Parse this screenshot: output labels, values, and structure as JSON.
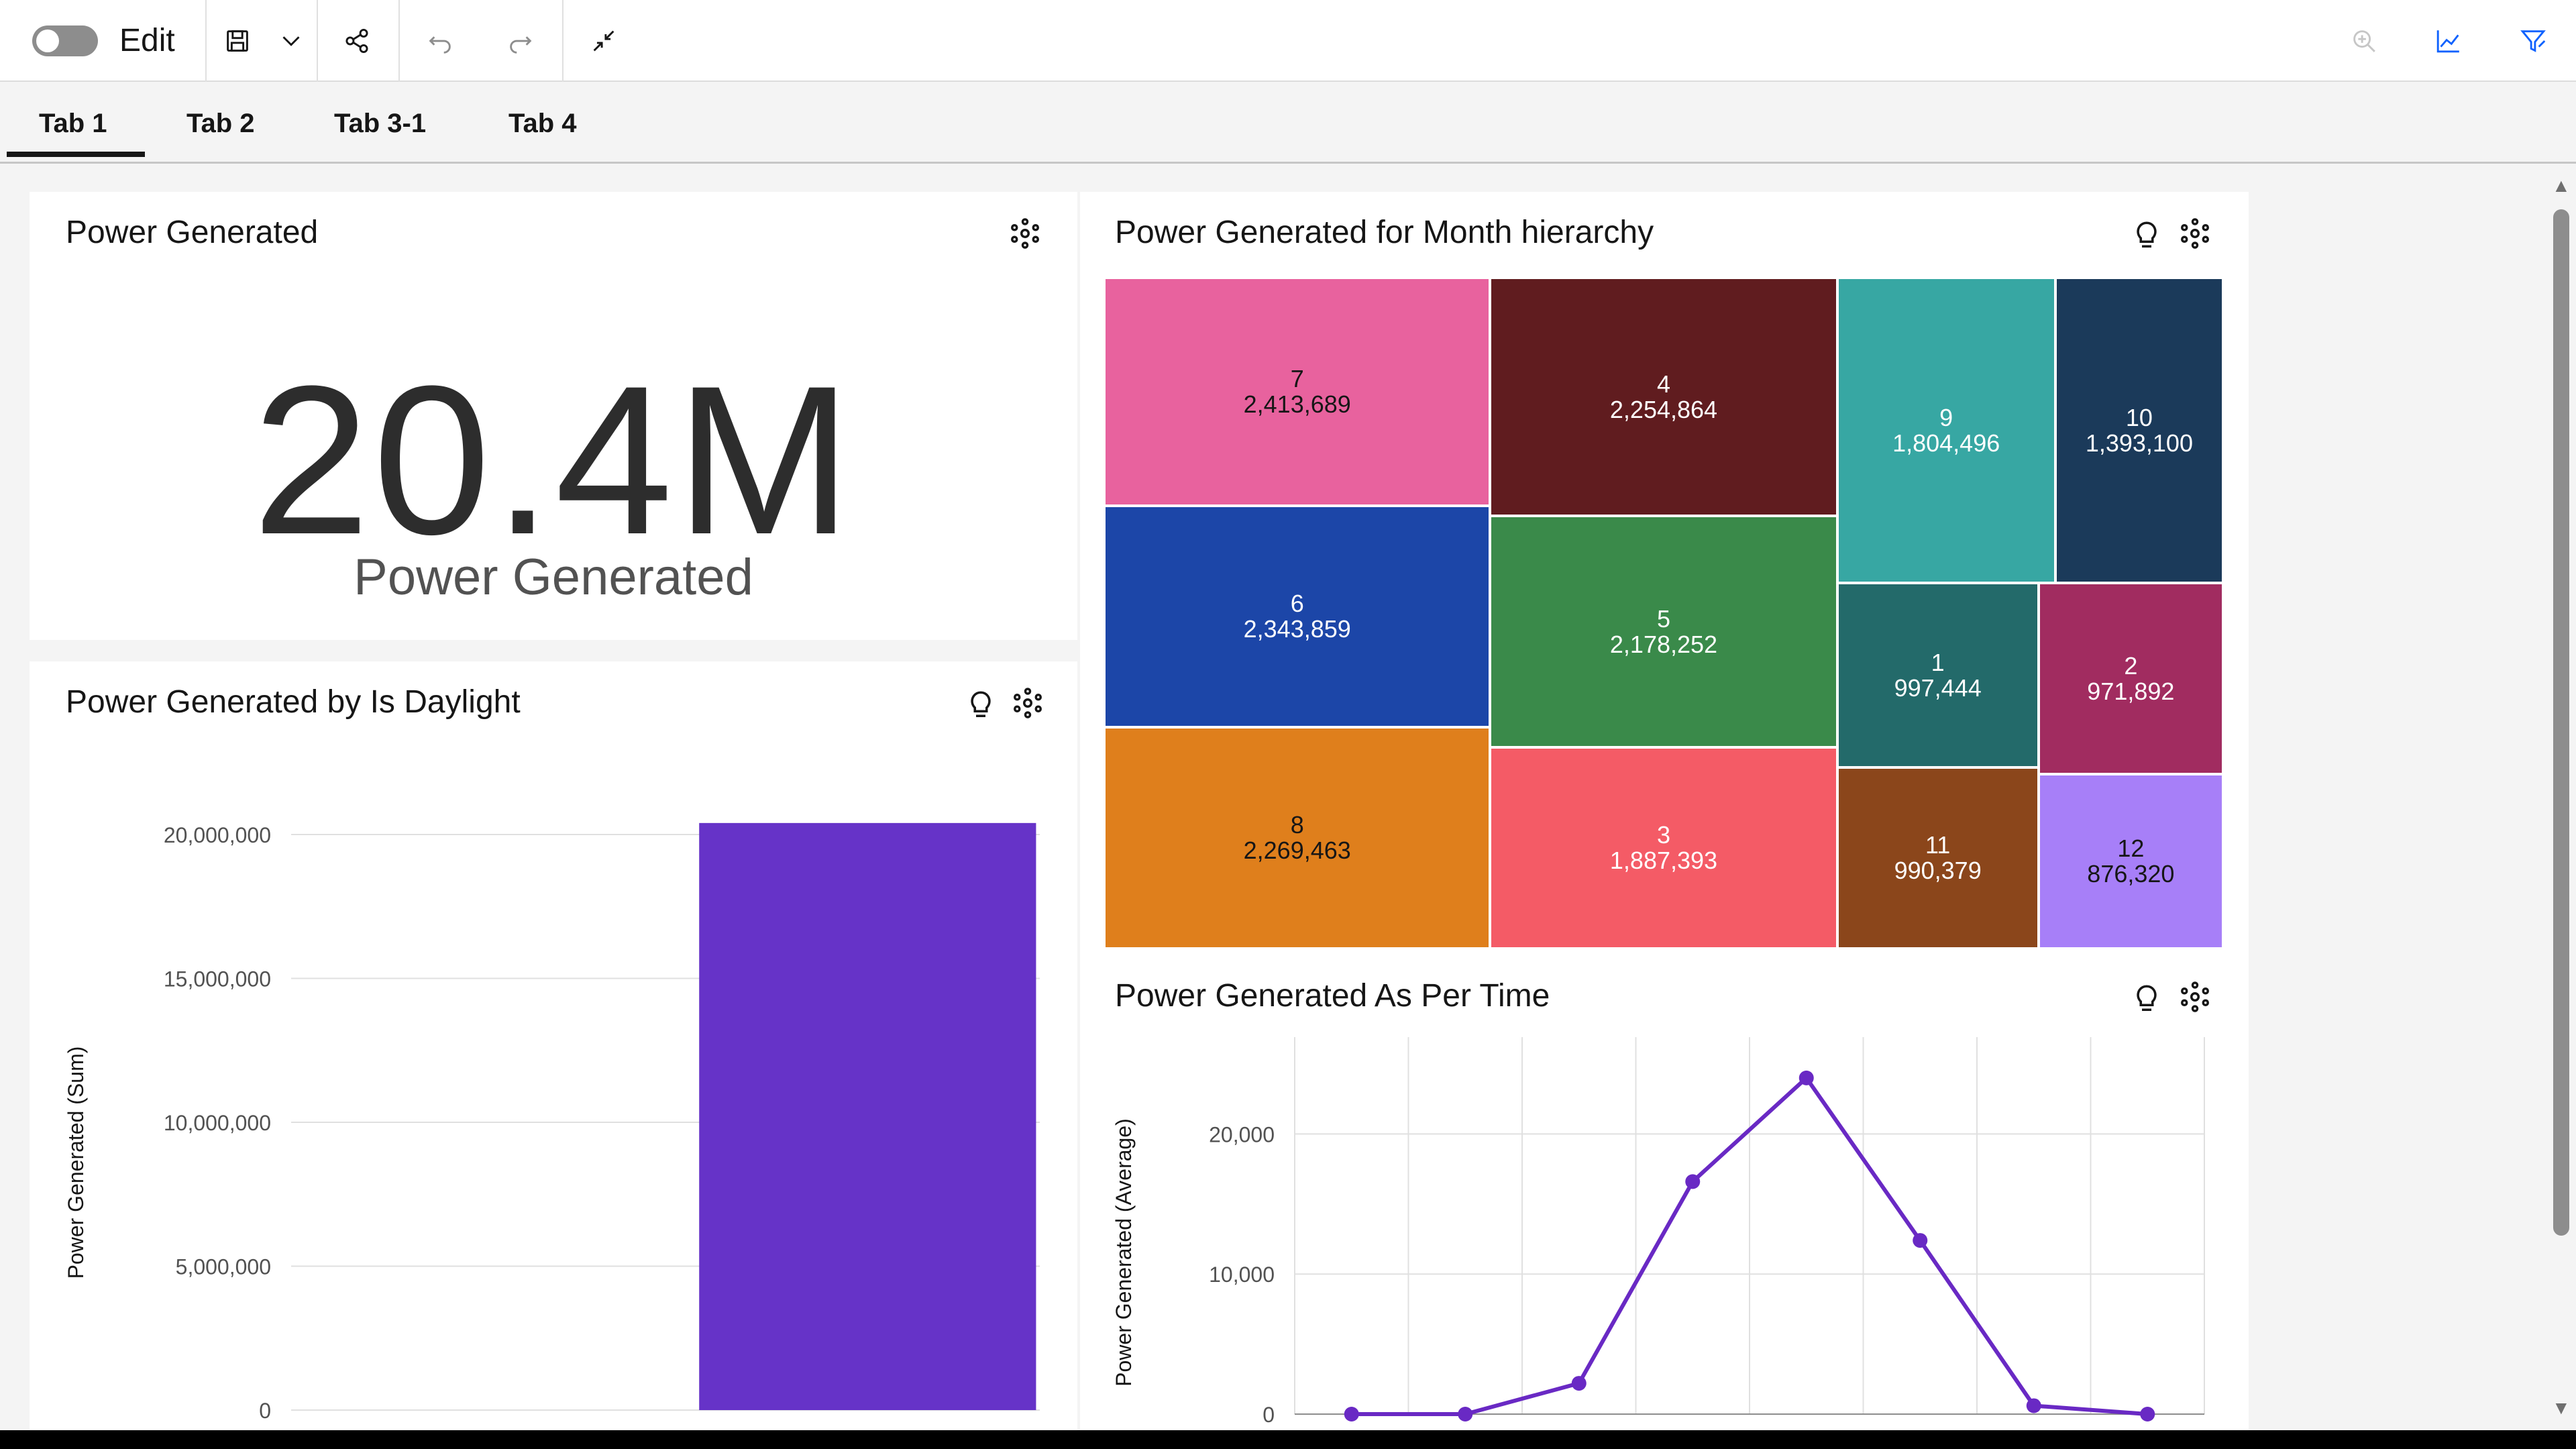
{
  "toolbar": {
    "edit_label": "Edit",
    "tools": [
      "save-icon",
      "chevron-down-icon",
      "share-icon",
      "undo-icon",
      "redo-icon",
      "collapse-icon",
      "zoom-icon",
      "trend-chart-icon",
      "filter-icon"
    ]
  },
  "tabs": [
    {
      "label": "Tab 1",
      "active": true
    },
    {
      "label": "Tab 2"
    },
    {
      "label": "Tab 3-1"
    },
    {
      "label": "Tab 4"
    }
  ],
  "kpi": {
    "title": "Power Generated",
    "value": "20.4M",
    "label": "Power Generated"
  },
  "bar_card": {
    "title": "Power Generated by Is Daylight"
  },
  "treemap_card": {
    "title": "Power Generated for Month hierarchy"
  },
  "line_card": {
    "title": "Power Generated As Per Time"
  },
  "colors": {
    "bar": "#6633c8",
    "line": "#6929c4",
    "accent_blue": "#0f62fe"
  },
  "chart_data": [
    {
      "type": "bar",
      "title": "Power Generated by Is Daylight",
      "ylabel": "Power Generated (Sum)",
      "categories": [
        "false",
        "true"
      ],
      "values": [
        0,
        20400000
      ],
      "ylim": [
        0,
        20000000
      ],
      "yticks": [
        "0",
        "5,000,000",
        "10,000,000",
        "15,000,000",
        "20,000,000"
      ],
      "grid": true
    },
    {
      "type": "heatmap",
      "title": "Power Generated for Month hierarchy",
      "cells": [
        {
          "label": "7",
          "value": "2,413,689",
          "color": "#e8629e"
        },
        {
          "label": "6",
          "value": "2,343,859",
          "color": "#1c46a8"
        },
        {
          "label": "8",
          "value": "2,269,463",
          "color": "#df7f1c"
        },
        {
          "label": "4",
          "value": "2,254,864",
          "color": "#601c1f"
        },
        {
          "label": "5",
          "value": "2,178,252",
          "color": "#3a8a4a"
        },
        {
          "label": "3",
          "value": "1,887,393",
          "color": "#f45b66"
        },
        {
          "label": "9",
          "value": "1,804,496",
          "color": "#37a7a3"
        },
        {
          "label": "10",
          "value": "1,393,100",
          "color": "#1b3a5a"
        },
        {
          "label": "1",
          "value": "997,444",
          "color": "#236a6a"
        },
        {
          "label": "2",
          "value": "971,892",
          "color": "#a12c60"
        },
        {
          "label": "11",
          "value": "990,379",
          "color": "#8b461b"
        },
        {
          "label": "12",
          "value": "876,320",
          "color": "#a77ff8"
        }
      ]
    },
    {
      "type": "line",
      "title": "Power Generated As Per Time",
      "ylabel": "Power Generated (Average)",
      "x": [
        1,
        2,
        3,
        4,
        5,
        6,
        7,
        8
      ],
      "values": [
        0,
        0,
        2200,
        16600,
        24000,
        12400,
        600,
        0
      ],
      "ylim": [
        0,
        25000
      ],
      "yticks": [
        "0",
        "10,000",
        "20,000"
      ],
      "grid": true
    }
  ]
}
